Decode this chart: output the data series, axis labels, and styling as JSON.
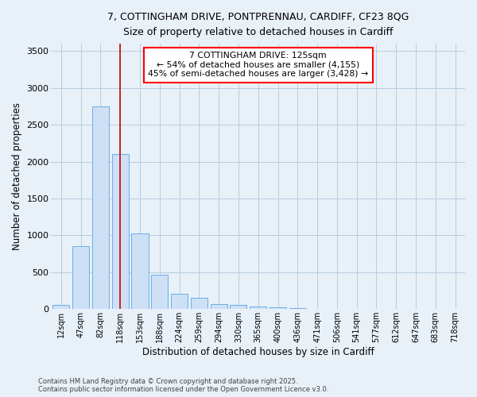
{
  "title_line1": "7, COTTINGHAM DRIVE, PONTPRENNAU, CARDIFF, CF23 8QG",
  "title_line2": "Size of property relative to detached houses in Cardiff",
  "xlabel": "Distribution of detached houses by size in Cardiff",
  "ylabel": "Number of detached properties",
  "bar_labels": [
    "12sqm",
    "47sqm",
    "82sqm",
    "118sqm",
    "153sqm",
    "188sqm",
    "224sqm",
    "259sqm",
    "294sqm",
    "330sqm",
    "365sqm",
    "400sqm",
    "436sqm",
    "471sqm",
    "506sqm",
    "541sqm",
    "577sqm",
    "612sqm",
    "647sqm",
    "683sqm",
    "718sqm"
  ],
  "bar_values": [
    60,
    850,
    2750,
    2100,
    1030,
    460,
    210,
    150,
    70,
    55,
    35,
    20,
    10,
    5,
    2,
    1,
    0,
    0,
    0,
    0,
    0
  ],
  "bar_color": "#cde0f5",
  "bar_edge_color": "#6aaee8",
  "red_line_x": 3,
  "red_line_color": "#cc0000",
  "ylim": [
    0,
    3600
  ],
  "yticks": [
    0,
    500,
    1000,
    1500,
    2000,
    2500,
    3000,
    3500
  ],
  "annotation_text": "7 COTTINGHAM DRIVE: 125sqm\n← 54% of detached houses are smaller (4,155)\n45% of semi-detached houses are larger (3,428) →",
  "footnote_line1": "Contains HM Land Registry data © Crown copyright and database right 2025.",
  "footnote_line2": "Contains public sector information licensed under the Open Government Licence v3.0.",
  "background_color": "#e8f0f8",
  "plot_bg_color": "#e8f0f8",
  "grid_color": "#b8cde0"
}
